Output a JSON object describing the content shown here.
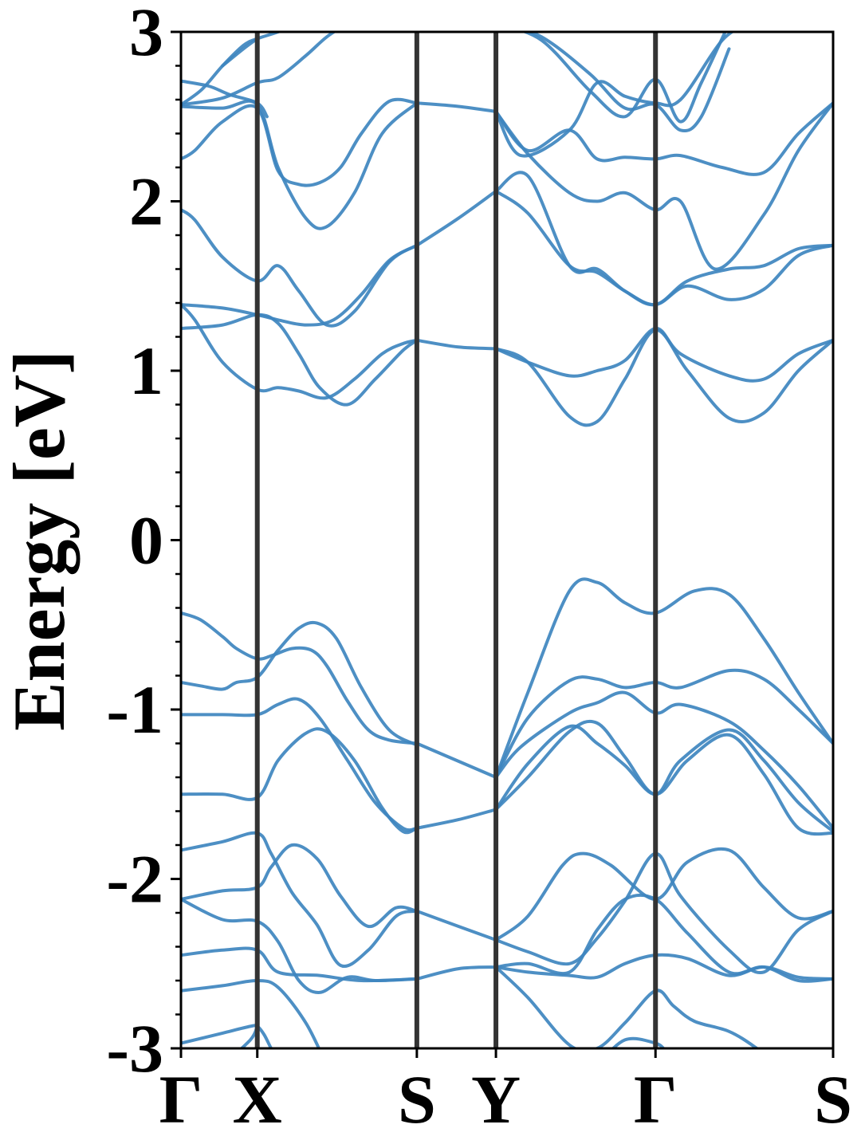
{
  "chart_data": {
    "type": "line",
    "title": "",
    "xlabel": "",
    "ylabel": "Energy [eV]",
    "ylim": [
      -3,
      3
    ],
    "yticks": [
      "3",
      "2",
      "1",
      "0",
      "-1",
      "-2",
      "-3"
    ],
    "ytick_values": [
      3,
      2,
      1,
      0,
      -1,
      -2,
      -3
    ],
    "y_minor_step": 0.2,
    "x_range": [
      0,
      4.7
    ],
    "high_symmetry_points": [
      {
        "label": "Γ",
        "x": 0
      },
      {
        "label": "X",
        "x": 0.55
      },
      {
        "label": "S",
        "x": 1.7
      },
      {
        "label": "Y",
        "x": 2.27
      },
      {
        "label": "Γ",
        "x": 3.42
      },
      {
        "label": "S",
        "x": 4.7
      }
    ],
    "grid": false,
    "legend": "none",
    "band_color": "#3e86bf",
    "kline_color": "#333333",
    "series": [
      {
        "x": [
          0,
          0.14,
          0.3,
          0.4,
          0.55,
          0.66,
          0.8,
          0.94,
          1.05,
          1.2,
          1.35,
          1.5,
          1.7
        ],
        "values": [
          -0.43,
          -0.47,
          -0.57,
          -0.64,
          -0.7,
          -0.68,
          -0.64,
          -0.65,
          -0.74,
          -0.95,
          -1.12,
          -1.18,
          -1.2
        ]
      },
      {
        "x": [
          0,
          0.14,
          0.3,
          0.4,
          0.55,
          0.7,
          0.85,
          0.98,
          1.12,
          1.3,
          1.5,
          1.7
        ],
        "values": [
          -0.84,
          -0.86,
          -0.88,
          -0.84,
          -0.81,
          -0.65,
          -0.52,
          -0.49,
          -0.58,
          -0.87,
          -1.12,
          -1.21
        ]
      },
      {
        "x": [
          0,
          0.3,
          0.55,
          0.7,
          0.85,
          1.0,
          1.2,
          1.4,
          1.6,
          1.7
        ],
        "values": [
          -1.03,
          -1.03,
          -1.03,
          -0.97,
          -0.94,
          -1.05,
          -1.3,
          -1.55,
          -1.7,
          -1.7
        ]
      },
      {
        "x": [
          0,
          0.3,
          0.55,
          0.7,
          0.9,
          1.05,
          1.25,
          1.45,
          1.6,
          1.7
        ],
        "values": [
          -1.5,
          -1.5,
          -1.52,
          -1.3,
          -1.14,
          -1.13,
          -1.3,
          -1.58,
          -1.72,
          -1.7
        ]
      },
      {
        "x": [
          0,
          0.3,
          0.55,
          0.65,
          0.8,
          0.98,
          1.15,
          1.35,
          1.55,
          1.7
        ],
        "values": [
          -1.83,
          -1.78,
          -1.73,
          -1.85,
          -2.08,
          -2.27,
          -2.51,
          -2.42,
          -2.22,
          -2.19
        ]
      },
      {
        "x": [
          0,
          0.3,
          0.55,
          0.65,
          0.8,
          0.98,
          1.15,
          1.35,
          1.55,
          1.7
        ],
        "values": [
          -2.12,
          -2.07,
          -2.05,
          -1.93,
          -1.8,
          -1.88,
          -2.1,
          -2.28,
          -2.17,
          -2.19
        ]
      },
      {
        "x": [
          0,
          0.3,
          0.55,
          0.7,
          0.85,
          1.0,
          1.2,
          1.4,
          1.7
        ],
        "values": [
          -2.12,
          -2.24,
          -2.25,
          -2.37,
          -2.6,
          -2.67,
          -2.58,
          -2.6,
          -2.59
        ]
      },
      {
        "x": [
          0,
          0.3,
          0.55,
          0.7,
          1.0,
          1.3,
          1.7
        ],
        "values": [
          -2.45,
          -2.42,
          -2.42,
          -2.55,
          -2.57,
          -2.6,
          -2.59
        ]
      },
      {
        "x": [
          0,
          0.3,
          0.55,
          0.7,
          0.9,
          1.05
        ],
        "values": [
          -2.66,
          -2.63,
          -2.6,
          -2.64,
          -2.85,
          -3.1
        ]
      },
      {
        "x": [
          0,
          0.3,
          0.5,
          0.55,
          0.6,
          0.65,
          0.72
        ],
        "values": [
          -2.97,
          -2.91,
          -2.87,
          -2.87,
          -2.92,
          -3.0,
          -3.1
        ]
      },
      {
        "x": [
          0.3,
          0.5,
          0.55
        ],
        "values": [
          -3.1,
          -2.95,
          -2.87
        ]
      },
      {
        "x": [
          0,
          0.3,
          0.55,
          0.7,
          0.85,
          1.0,
          1.2,
          1.4,
          1.6,
          1.7
        ],
        "values": [
          1.25,
          1.27,
          1.33,
          1.28,
          1.1,
          0.9,
          0.8,
          0.95,
          1.12,
          1.18
        ]
      },
      {
        "x": [
          0,
          0.3,
          0.55,
          0.7,
          0.9,
          1.1,
          1.3,
          1.5,
          1.7
        ],
        "values": [
          1.39,
          1.37,
          1.33,
          1.3,
          1.27,
          1.3,
          1.45,
          1.65,
          1.74
        ]
      },
      {
        "x": [
          0,
          0.1,
          0.3,
          0.55,
          0.7,
          0.85,
          1.05,
          1.25,
          1.45,
          1.6,
          1.7
        ],
        "values": [
          1.39,
          1.3,
          1.05,
          0.89,
          0.9,
          0.88,
          0.84,
          0.95,
          1.1,
          1.16,
          1.18
        ]
      },
      {
        "x": [
          0,
          0.1,
          0.3,
          0.55,
          0.7,
          0.85,
          1.05,
          1.25,
          1.5,
          1.7
        ],
        "values": [
          1.95,
          1.89,
          1.67,
          1.53,
          1.62,
          1.47,
          1.27,
          1.35,
          1.64,
          1.74
        ]
      },
      {
        "x": [
          0,
          0.1,
          0.3,
          0.55,
          0.7,
          0.85,
          1.0,
          1.15,
          1.3,
          1.5,
          1.7
        ],
        "values": [
          2.25,
          2.3,
          2.47,
          2.55,
          2.18,
          2.1,
          2.11,
          2.2,
          2.4,
          2.59,
          2.58
        ]
      },
      {
        "x": [
          0,
          0.3,
          0.55,
          0.7,
          0.9,
          1.05,
          1.25,
          1.45,
          1.7
        ],
        "values": [
          2.56,
          2.55,
          2.57,
          2.2,
          1.9,
          1.85,
          2.05,
          2.4,
          2.58
        ]
      },
      {
        "x": [
          0,
          0.3,
          0.55,
          0.7,
          0.9,
          1.05,
          1.2
        ],
        "values": [
          2.57,
          2.61,
          2.7,
          2.73,
          2.86,
          2.97,
          3.05
        ]
      },
      {
        "x": [
          0,
          0.2,
          0.35,
          0.55,
          0.62
        ],
        "values": [
          2.71,
          2.68,
          2.63,
          2.58,
          2.5
        ]
      },
      {
        "x": [
          0,
          0.15,
          0.3,
          0.45,
          0.55,
          0.7,
          0.85
        ],
        "values": [
          2.57,
          2.66,
          2.8,
          2.92,
          2.96,
          3.0,
          3.05
        ]
      },
      {
        "x": [
          0.3,
          0.45,
          0.55
        ],
        "values": [
          2.8,
          2.9,
          2.96
        ]
      },
      {
        "x": [
          1.7,
          2.27
        ],
        "values": [
          -1.2,
          -1.4
        ]
      },
      {
        "x": [
          1.7,
          2.0,
          2.27
        ],
        "values": [
          -1.7,
          -1.65,
          -1.59
        ]
      },
      {
        "x": [
          1.7,
          2.0,
          2.27
        ],
        "values": [
          -2.19,
          -2.28,
          -2.36
        ]
      },
      {
        "x": [
          1.7,
          2.0,
          2.27
        ],
        "values": [
          -2.59,
          -2.53,
          -2.52
        ]
      },
      {
        "x": [
          1.7,
          2.0,
          2.27
        ],
        "values": [
          1.18,
          1.14,
          1.13
        ]
      },
      {
        "x": [
          1.7,
          2.0,
          2.27
        ],
        "values": [
          1.74,
          1.9,
          2.06
        ]
      },
      {
        "x": [
          1.7,
          2.0,
          2.27
        ],
        "values": [
          2.58,
          2.56,
          2.53
        ]
      },
      {
        "x": [
          2.27,
          2.5,
          2.8,
          3.0,
          3.2,
          3.42,
          3.7,
          3.95,
          4.2,
          4.45,
          4.7
        ],
        "values": [
          -1.4,
          -0.9,
          -0.3,
          -0.25,
          -0.37,
          -0.43,
          -0.3,
          -0.32,
          -0.58,
          -0.9,
          -1.2
        ]
      },
      {
        "x": [
          2.27,
          2.5,
          2.8,
          3.0,
          3.2,
          3.42,
          3.6,
          3.95,
          4.2,
          4.45,
          4.7
        ],
        "values": [
          -1.4,
          -1.05,
          -0.83,
          -0.82,
          -0.87,
          -0.84,
          -0.87,
          -0.77,
          -0.82,
          -1.0,
          -1.2
        ]
      },
      {
        "x": [
          2.27,
          2.45,
          2.8,
          3.0,
          3.2,
          3.42,
          3.6,
          3.95,
          4.2,
          4.45,
          4.7
        ],
        "values": [
          -1.4,
          -1.22,
          -1.02,
          -0.96,
          -0.9,
          -1.02,
          -0.97,
          -1.07,
          -1.24,
          -1.45,
          -1.7
        ]
      },
      {
        "x": [
          2.27,
          2.5,
          2.8,
          3.0,
          3.2,
          3.42,
          3.6,
          3.95,
          4.2,
          4.45,
          4.7
        ],
        "values": [
          -1.59,
          -1.32,
          -1.1,
          -1.2,
          -1.33,
          -1.5,
          -1.3,
          -1.12,
          -1.3,
          -1.55,
          -1.72
        ]
      },
      {
        "x": [
          2.27,
          2.5,
          2.8,
          3.0,
          3.2,
          3.42,
          3.65,
          3.95,
          4.2,
          4.45,
          4.7
        ],
        "values": [
          -1.59,
          -1.4,
          -1.13,
          -1.08,
          -1.28,
          -1.5,
          -1.3,
          -1.15,
          -1.38,
          -1.7,
          -1.73
        ]
      },
      {
        "x": [
          2.27,
          2.5,
          2.75,
          2.9,
          3.1,
          3.42,
          3.65,
          3.95,
          4.2,
          4.45,
          4.7
        ],
        "values": [
          -2.36,
          -2.22,
          -1.92,
          -1.85,
          -1.92,
          -2.12,
          -1.9,
          -1.83,
          -2.05,
          -2.23,
          -2.19
        ]
      },
      {
        "x": [
          2.27,
          2.5,
          2.8,
          3.0,
          3.2,
          3.42,
          3.6,
          3.95,
          4.2,
          4.45,
          4.7
        ],
        "values": [
          -2.36,
          -2.43,
          -2.5,
          -2.35,
          -2.13,
          -1.85,
          -2.1,
          -2.42,
          -2.55,
          -2.3,
          -2.19
        ]
      },
      {
        "x": [
          2.27,
          2.5,
          2.8,
          3.0,
          3.2,
          3.42,
          3.65,
          3.95,
          4.2,
          4.45,
          4.7
        ],
        "values": [
          -2.52,
          -2.5,
          -2.55,
          -2.3,
          -2.12,
          -2.12,
          -2.32,
          -2.55,
          -2.52,
          -2.6,
          -2.59
        ]
      },
      {
        "x": [
          2.27,
          2.5,
          2.8,
          3.0,
          3.2,
          3.42,
          3.65,
          3.95,
          4.2,
          4.45,
          4.7
        ],
        "values": [
          -2.52,
          -2.55,
          -2.57,
          -2.58,
          -2.5,
          -2.45,
          -2.47,
          -2.57,
          -2.52,
          -2.58,
          -2.59
        ]
      },
      {
        "x": [
          2.27,
          2.5,
          2.8,
          3.0,
          3.2,
          3.42,
          3.55,
          3.7,
          3.95,
          4.15,
          4.3
        ],
        "values": [
          -2.52,
          -2.7,
          -2.98,
          -3.0,
          -2.85,
          -2.66,
          -2.75,
          -2.84,
          -2.9,
          -3.0,
          -3.1
        ]
      },
      {
        "x": [
          3.0,
          3.2,
          3.42,
          3.5,
          3.6
        ],
        "values": [
          -3.1,
          -2.95,
          -2.97,
          -3.02,
          -3.1
        ]
      },
      {
        "x": [
          2.27,
          2.5,
          2.8,
          3.0,
          3.2,
          3.42,
          3.6,
          3.95,
          4.2,
          4.45,
          4.7
        ],
        "values": [
          1.13,
          1.05,
          0.97,
          1.0,
          1.06,
          1.25,
          1.1,
          0.97,
          0.95,
          1.1,
          1.18
        ]
      },
      {
        "x": [
          2.27,
          2.5,
          2.8,
          3.0,
          3.2,
          3.42,
          3.65,
          3.95,
          4.2,
          4.45,
          4.7
        ],
        "values": [
          1.13,
          1.05,
          0.73,
          0.7,
          0.95,
          1.24,
          1.0,
          0.72,
          0.75,
          1.0,
          1.18
        ]
      },
      {
        "x": [
          2.27,
          2.5,
          2.8,
          3.0,
          3.2,
          3.42,
          3.65,
          3.95,
          4.2,
          4.45,
          4.7
        ],
        "values": [
          2.06,
          1.93,
          1.62,
          1.58,
          1.47,
          1.39,
          1.5,
          1.42,
          1.48,
          1.68,
          1.74
        ]
      },
      {
        "x": [
          2.27,
          2.5,
          2.8,
          3.0,
          3.2,
          3.42,
          3.65,
          3.95,
          4.2,
          4.45,
          4.7
        ],
        "values": [
          2.06,
          2.15,
          1.62,
          1.6,
          1.47,
          1.39,
          1.53,
          1.6,
          1.62,
          1.72,
          1.74
        ]
      },
      {
        "x": [
          2.27,
          2.5,
          2.8,
          3.0,
          3.2,
          3.42,
          3.6,
          3.85,
          4.2,
          4.45,
          4.7
        ],
        "values": [
          2.53,
          2.28,
          2.05,
          2.0,
          2.05,
          1.95,
          2.0,
          1.6,
          1.92,
          2.3,
          2.58
        ]
      },
      {
        "x": [
          2.27,
          2.5,
          2.8,
          3.0,
          3.2,
          3.42,
          3.6,
          3.9,
          4.2,
          4.45,
          4.7
        ],
        "values": [
          2.53,
          2.3,
          2.42,
          2.25,
          2.26,
          2.25,
          2.27,
          2.2,
          2.17,
          2.4,
          2.58
        ]
      },
      {
        "x": [
          2.27,
          2.45,
          2.8,
          3.0,
          3.2,
          3.42,
          3.6,
          3.9,
          4.1
        ],
        "values": [
          2.53,
          2.27,
          2.42,
          2.7,
          2.62,
          2.58,
          2.6,
          2.95,
          3.05
        ]
      },
      {
        "x": [
          2.27,
          2.6,
          2.95,
          3.2,
          3.42,
          3.6,
          3.75,
          3.95
        ],
        "values": [
          3.05,
          2.95,
          2.65,
          2.5,
          2.72,
          2.47,
          2.7,
          3.05
        ]
      },
      {
        "x": [
          2.3,
          2.6,
          2.95,
          3.2,
          3.42,
          3.6,
          3.75,
          3.95
        ],
        "values": [
          3.05,
          2.97,
          2.75,
          2.55,
          2.57,
          2.42,
          2.5,
          2.9
        ]
      }
    ]
  }
}
